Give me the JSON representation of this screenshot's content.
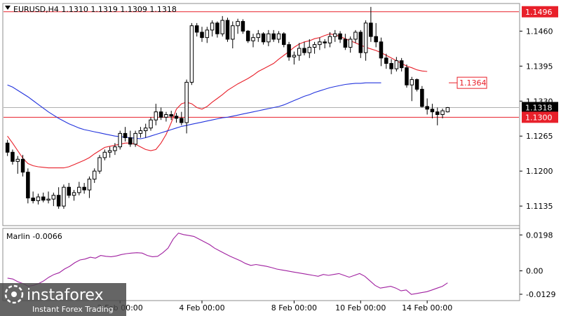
{
  "symbol_header": "EURUSD,H4  1.1310 1.1319 1.1309 1.1318",
  "indicator_header": "Marlin -0.0066",
  "brand": {
    "name": "instaforex",
    "tagline": "Instant Forex Trading"
  },
  "colors": {
    "bull_body": "#ffffff",
    "bear_body": "#000000",
    "ma_red": "#e8202a",
    "ma_blue": "#2233dd",
    "marlin": "#a020a0",
    "level_line": "#e8202a",
    "badge_red": "#e8202a",
    "badge_dark": "#000000"
  },
  "chart_data": [
    {
      "type": "candlestick",
      "symbol": "EURUSD",
      "timeframe": "H4",
      "ohlc_last": {
        "open": 1.131,
        "high": 1.1319,
        "low": 1.1309,
        "close": 1.1318
      },
      "ylim": [
        1.11,
        1.151
      ],
      "y_ticks": [
        "1.1460",
        "1.1395",
        "1.1330",
        "1.1265",
        "1.1200",
        "1.1135"
      ],
      "x_ticks": [
        "2 Feb 00:00",
        "4 Feb 00:00",
        "8 Feb 00:00",
        "10 Feb 00:00",
        "14 Feb 00:00"
      ],
      "horizontal_levels": [
        {
          "label": "1.1496",
          "value": 1.1496
        },
        {
          "label": "1.1300",
          "value": 1.13
        }
      ],
      "price_badges": [
        {
          "label": "1.1496",
          "style": "red"
        },
        {
          "label": "1.1364",
          "style": "red-outline"
        },
        {
          "label": "1.1318",
          "style": "dark"
        },
        {
          "label": "1.1300",
          "style": "red"
        }
      ],
      "candles": [
        [
          1.1252,
          1.1258,
          1.1228,
          1.1235
        ],
        [
          1.1235,
          1.124,
          1.1212,
          1.1218
        ],
        [
          1.1218,
          1.1228,
          1.1195,
          1.1222
        ],
        [
          1.1222,
          1.123,
          1.119,
          1.1198
        ],
        [
          1.1198,
          1.1205,
          1.114,
          1.115
        ],
        [
          1.115,
          1.1162,
          1.114,
          1.1145
        ],
        [
          1.1145,
          1.1158,
          1.1138,
          1.1152
        ],
        [
          1.1152,
          1.116,
          1.1142,
          1.1146
        ],
        [
          1.1146,
          1.1162,
          1.114,
          1.1148
        ],
        [
          1.1148,
          1.116,
          1.1135,
          1.1155
        ],
        [
          1.1155,
          1.117,
          1.113,
          1.1135
        ],
        [
          1.1135,
          1.1175,
          1.113,
          1.117
        ],
        [
          1.117,
          1.1178,
          1.115,
          1.1155
        ],
        [
          1.1155,
          1.1165,
          1.1145,
          1.116
        ],
        [
          1.116,
          1.118,
          1.1155,
          1.117
        ],
        [
          1.117,
          1.1178,
          1.1158,
          1.1165
        ],
        [
          1.1165,
          1.119,
          1.115,
          1.1185
        ],
        [
          1.1185,
          1.1205,
          1.1178,
          1.12
        ],
        [
          1.12,
          1.123,
          1.1195,
          1.1225
        ],
        [
          1.1225,
          1.124,
          1.122,
          1.1235
        ],
        [
          1.1235,
          1.1245,
          1.1225,
          1.1238
        ],
        [
          1.1238,
          1.1252,
          1.123,
          1.1245
        ],
        [
          1.1245,
          1.1275,
          1.124,
          1.127
        ],
        [
          1.127,
          1.1282,
          1.1255,
          1.1262
        ],
        [
          1.1262,
          1.1275,
          1.1245,
          1.125
        ],
        [
          1.125,
          1.1275,
          1.1245,
          1.127
        ],
        [
          1.127,
          1.1282,
          1.1262,
          1.1275
        ],
        [
          1.1275,
          1.1288,
          1.1262,
          1.128
        ],
        [
          1.128,
          1.13,
          1.1275,
          1.1295
        ],
        [
          1.1295,
          1.1325,
          1.1285,
          1.131
        ],
        [
          1.131,
          1.1318,
          1.1295,
          1.13
        ],
        [
          1.13,
          1.131,
          1.1292,
          1.1305
        ],
        [
          1.1305,
          1.1312,
          1.1295,
          1.1302
        ],
        [
          1.1302,
          1.1308,
          1.129,
          1.1298
        ],
        [
          1.1298,
          1.131,
          1.1285,
          1.129
        ],
        [
          1.129,
          1.137,
          1.127,
          1.1365
        ],
        [
          1.1365,
          1.1475,
          1.136,
          1.147
        ],
        [
          1.147,
          1.1475,
          1.145,
          1.1458
        ],
        [
          1.1458,
          1.1468,
          1.144,
          1.1448
        ],
        [
          1.1448,
          1.1468,
          1.1438,
          1.1462
        ],
        [
          1.1462,
          1.148,
          1.145,
          1.1475
        ],
        [
          1.1475,
          1.1478,
          1.1448,
          1.1455
        ],
        [
          1.1455,
          1.1488,
          1.145,
          1.148
        ],
        [
          1.148,
          1.1485,
          1.144,
          1.1445
        ],
        [
          1.1445,
          1.1478,
          1.1428,
          1.147
        ],
        [
          1.147,
          1.1483,
          1.1455,
          1.1478
        ],
        [
          1.1478,
          1.1482,
          1.1455,
          1.146
        ],
        [
          1.146,
          1.1462,
          1.1438,
          1.1442
        ],
        [
          1.1442,
          1.1455,
          1.143,
          1.1448
        ],
        [
          1.1448,
          1.1462,
          1.144,
          1.1455
        ],
        [
          1.1455,
          1.1458,
          1.1435,
          1.144
        ],
        [
          1.144,
          1.1462,
          1.1432,
          1.1455
        ],
        [
          1.1455,
          1.1462,
          1.144,
          1.1445
        ],
        [
          1.1445,
          1.146,
          1.1438,
          1.1455
        ],
        [
          1.1455,
          1.1458,
          1.143,
          1.1435
        ],
        [
          1.1435,
          1.144,
          1.1405,
          1.1412
        ],
        [
          1.1412,
          1.1422,
          1.1398,
          1.1415
        ],
        [
          1.1415,
          1.1438,
          1.1405,
          1.1428
        ],
        [
          1.1428,
          1.144,
          1.1415,
          1.142
        ],
        [
          1.142,
          1.1445,
          1.141,
          1.143
        ],
        [
          1.143,
          1.144,
          1.1418,
          1.1435
        ],
        [
          1.1435,
          1.1448,
          1.1425,
          1.144
        ],
        [
          1.144,
          1.1445,
          1.1428,
          1.1438
        ],
        [
          1.1438,
          1.1458,
          1.143,
          1.145
        ],
        [
          1.145,
          1.1462,
          1.144,
          1.1455
        ],
        [
          1.1455,
          1.146,
          1.1438,
          1.1445
        ],
        [
          1.1445,
          1.1455,
          1.1425,
          1.143
        ],
        [
          1.143,
          1.145,
          1.142,
          1.1445
        ],
        [
          1.1445,
          1.1462,
          1.1438,
          1.1458
        ],
        [
          1.1458,
          1.1462,
          1.141,
          1.142
        ],
        [
          1.142,
          1.148,
          1.1405,
          1.1475
        ],
        [
          1.1475,
          1.1505,
          1.144,
          1.145
        ],
        [
          1.145,
          1.1475,
          1.143,
          1.144
        ],
        [
          1.144,
          1.1448,
          1.1395,
          1.141
        ],
        [
          1.141,
          1.1418,
          1.139,
          1.14
        ],
        [
          1.14,
          1.1408,
          1.138,
          1.139
        ],
        [
          1.139,
          1.1412,
          1.1385,
          1.1405
        ],
        [
          1.1405,
          1.141,
          1.1385,
          1.1392
        ],
        [
          1.1392,
          1.1398,
          1.1355,
          1.136
        ],
        [
          1.136,
          1.1375,
          1.133,
          1.137
        ],
        [
          1.137,
          1.1372,
          1.1348,
          1.1352
        ],
        [
          1.1352,
          1.1358,
          1.1318,
          1.132
        ],
        [
          1.132,
          1.1335,
          1.1305,
          1.1315
        ],
        [
          1.1315,
          1.1325,
          1.1298,
          1.131
        ],
        [
          1.131,
          1.1318,
          1.1285,
          1.1305
        ],
        [
          1.1305,
          1.1316,
          1.1298,
          1.1312
        ],
        [
          1.131,
          1.1319,
          1.1309,
          1.1318
        ]
      ],
      "ma_red": [
        1.1265,
        1.1252,
        1.1238,
        1.1224,
        1.1214,
        1.121,
        1.1208,
        1.1207,
        1.1206,
        1.1206,
        1.1206,
        1.1206,
        1.1208,
        1.1212,
        1.1216,
        1.122,
        1.1225,
        1.1232,
        1.1238,
        1.1244,
        1.1246,
        1.1248,
        1.125,
        1.1252,
        1.1252,
        1.125,
        1.1245,
        1.124,
        1.1238,
        1.124,
        1.1252,
        1.1268,
        1.129,
        1.1315,
        1.1325,
        1.1328,
        1.1325,
        1.1318,
        1.1315,
        1.132,
        1.1328,
        1.1335,
        1.1342,
        1.135,
        1.1356,
        1.1362,
        1.1367,
        1.1372,
        1.1378,
        1.1385,
        1.139,
        1.1395,
        1.14,
        1.1408,
        1.1415,
        1.1422,
        1.143,
        1.1436,
        1.144,
        1.1442,
        1.1446,
        1.1448,
        1.1452,
        1.1455,
        1.1453,
        1.145,
        1.1446,
        1.1442,
        1.1438,
        1.1434,
        1.143,
        1.1427,
        1.1424,
        1.142,
        1.1415,
        1.141,
        1.1405,
        1.14,
        1.1395,
        1.1392,
        1.1388,
        1.1386,
        1.1385
      ],
      "ma_blue": [
        1.136,
        1.1356,
        1.135,
        1.1344,
        1.1338,
        1.1331,
        1.1324,
        1.1317,
        1.131,
        1.1304,
        1.1298,
        1.1293,
        1.1288,
        1.1284,
        1.128,
        1.1277,
        1.1275,
        1.1273,
        1.1271,
        1.1269,
        1.1267,
        1.1265,
        1.1264,
        1.1263,
        1.1262,
        1.1261,
        1.126,
        1.1262,
        1.1265,
        1.1268,
        1.1271,
        1.1274,
        1.1277,
        1.128,
        1.1283,
        1.1285,
        1.1287,
        1.1289,
        1.1291,
        1.1293,
        1.1295,
        1.1297,
        1.1299,
        1.13,
        1.1302,
        1.1304,
        1.1306,
        1.1308,
        1.131,
        1.1312,
        1.1314,
        1.1316,
        1.1318,
        1.132,
        1.1323,
        1.1327,
        1.1331,
        1.1335,
        1.1339,
        1.1342,
        1.1346,
        1.1349,
        1.1352,
        1.1355,
        1.1357,
        1.1359,
        1.1361,
        1.1362,
        1.1363,
        1.1363,
        1.1364,
        1.1364,
        1.1364,
        1.1364
      ]
    },
    {
      "type": "line",
      "name": "Marlin",
      "last_value": -0.0066,
      "ylim": [
        -0.016,
        0.023
      ],
      "y_ticks": [
        "0.0198",
        "0.00",
        "-0.0129"
      ],
      "values": [
        -0.004,
        -0.0045,
        -0.006,
        -0.007,
        -0.0085,
        -0.008,
        -0.007,
        -0.0055,
        -0.0035,
        -0.002,
        -0.001,
        0.001,
        0.0025,
        0.0045,
        0.006,
        0.0065,
        0.0075,
        0.007,
        0.0085,
        0.008,
        0.0078,
        0.0082,
        0.009,
        0.0095,
        0.0098,
        0.01,
        0.0098,
        0.0085,
        0.0078,
        0.008,
        0.01,
        0.0125,
        0.0175,
        0.0208,
        0.02,
        0.0195,
        0.019,
        0.0175,
        0.016,
        0.0145,
        0.0125,
        0.011,
        0.0095,
        0.008,
        0.0068,
        0.0055,
        0.004,
        0.003,
        0.0035,
        0.003,
        0.0025,
        0.0018,
        0.001,
        0.0005,
        0.0,
        -0.0005,
        -0.001,
        -0.0015,
        -0.002,
        -0.0025,
        -0.003,
        -0.002,
        -0.0025,
        -0.002,
        -0.0015,
        -0.0025,
        -0.0035,
        -0.0025,
        -0.0015,
        -0.003,
        -0.0055,
        -0.008,
        -0.0095,
        -0.009,
        -0.0085,
        -0.0095,
        -0.011,
        -0.0105,
        -0.013,
        -0.0125,
        -0.012,
        -0.0115,
        -0.0105,
        -0.0095,
        -0.0085,
        -0.0066
      ]
    }
  ]
}
